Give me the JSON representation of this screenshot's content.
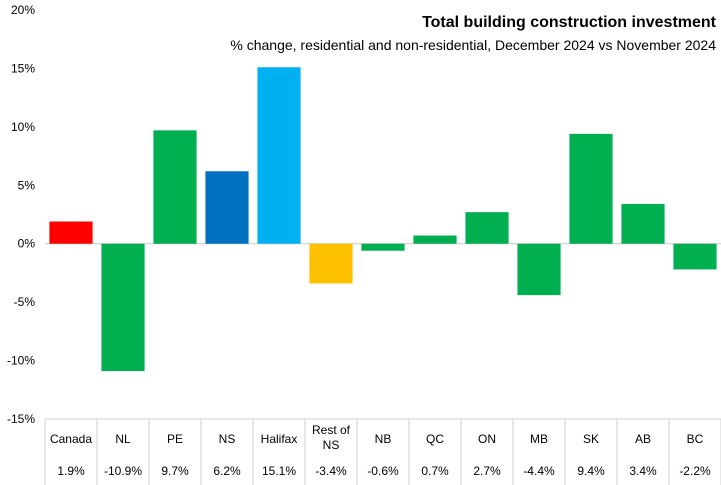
{
  "chart_data": {
    "type": "bar",
    "title": "Total building construction investment",
    "subtitle": "% change, residential and non-residential, December 2024 vs November 2024",
    "categories": [
      "Canada",
      "NL",
      "PE",
      "NS",
      "Halifax",
      "Rest of NS",
      "NB",
      "QC",
      "ON",
      "MB",
      "SK",
      "AB",
      "BC"
    ],
    "values": [
      1.9,
      -10.9,
      9.7,
      6.2,
      15.1,
      -3.4,
      -0.6,
      0.7,
      2.7,
      -4.4,
      9.4,
      3.4,
      -2.2
    ],
    "value_labels": [
      "1.9%",
      "-10.9%",
      "9.7%",
      "6.2%",
      "15.1%",
      "-3.4%",
      "-0.6%",
      "0.7%",
      "2.7%",
      "-4.4%",
      "9.4%",
      "3.4%",
      "-2.2%"
    ],
    "bar_colors": [
      "#ff0000",
      "#00b050",
      "#00b050",
      "#0070c0",
      "#00b0f0",
      "#ffc000",
      "#00b050",
      "#00b050",
      "#00b050",
      "#00b050",
      "#00b050",
      "#00b050",
      "#00b050"
    ],
    "ylim": [
      -15,
      20
    ],
    "yticks": [
      -15,
      -10,
      -5,
      0,
      5,
      10,
      15,
      20
    ],
    "ytick_labels": [
      "-15%",
      "-10%",
      "-5%",
      "0%",
      "5%",
      "10%",
      "15%",
      "20%"
    ],
    "xlabel": "",
    "ylabel": "",
    "grid": false,
    "table_below": true
  }
}
